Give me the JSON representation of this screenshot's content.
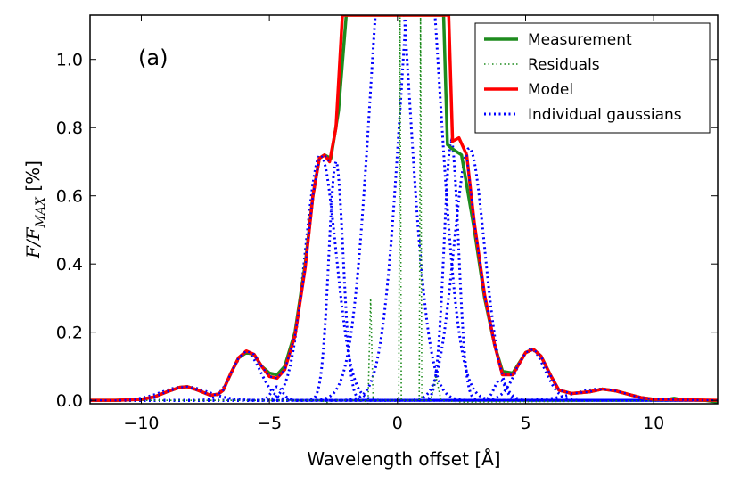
{
  "chart_data": {
    "type": "line",
    "panel_label": "(a)",
    "xlabel": "Wavelength offset [Å]",
    "ylabel": {
      "main": "F/F",
      "subscript": "MAX",
      "unit": " [%]"
    },
    "xlim": [
      -12,
      12.5
    ],
    "ylim": [
      -0.01,
      1.13
    ],
    "xticks": [
      -10,
      -5,
      0,
      5,
      10
    ],
    "xtick_labels": [
      "−10",
      "−5",
      "0",
      "5",
      "10"
    ],
    "yticks": [
      0.0,
      0.2,
      0.4,
      0.6,
      0.8,
      1.0
    ],
    "ytick_labels": [
      "0.0",
      "0.2",
      "0.4",
      "0.6",
      "0.8",
      "1.0"
    ],
    "legend_position": "top-right",
    "series": [
      {
        "name": "Measurement",
        "style": "solid",
        "color": "#1e8b1e",
        "points": [
          [
            -12,
            0.0
          ],
          [
            -11,
            0.0
          ],
          [
            -10,
            0.003
          ],
          [
            -9.5,
            0.01
          ],
          [
            -9,
            0.025
          ],
          [
            -8.5,
            0.038
          ],
          [
            -8.2,
            0.04
          ],
          [
            -7.8,
            0.03
          ],
          [
            -7.3,
            0.015
          ],
          [
            -7,
            0.018
          ],
          [
            -6.8,
            0.03
          ],
          [
            -6.5,
            0.08
          ],
          [
            -6.2,
            0.125
          ],
          [
            -5.9,
            0.14
          ],
          [
            -5.6,
            0.135
          ],
          [
            -5.3,
            0.1
          ],
          [
            -5,
            0.08
          ],
          [
            -4.7,
            0.075
          ],
          [
            -4.4,
            0.1
          ],
          [
            -4,
            0.2
          ],
          [
            -3.6,
            0.4
          ],
          [
            -3.3,
            0.6
          ],
          [
            -3.05,
            0.71
          ],
          [
            -2.85,
            0.72
          ],
          [
            -2.6,
            0.71
          ],
          [
            -2.3,
            0.85
          ],
          [
            -2.0,
            1.13
          ],
          [
            1.8,
            1.13
          ],
          [
            1.95,
            0.75
          ],
          [
            2.1,
            0.74
          ],
          [
            2.5,
            0.72
          ],
          [
            3.0,
            0.5
          ],
          [
            3.4,
            0.3
          ],
          [
            3.8,
            0.16
          ],
          [
            4.1,
            0.085
          ],
          [
            4.5,
            0.08
          ],
          [
            5.0,
            0.14
          ],
          [
            5.3,
            0.15
          ],
          [
            5.6,
            0.13
          ],
          [
            6.0,
            0.07
          ],
          [
            6.3,
            0.03
          ],
          [
            6.8,
            0.02
          ],
          [
            7.5,
            0.025
          ],
          [
            8.0,
            0.033
          ],
          [
            8.5,
            0.028
          ],
          [
            9.0,
            0.018
          ],
          [
            9.5,
            0.008
          ],
          [
            10,
            0.003
          ],
          [
            10.5,
            0.002
          ],
          [
            10.8,
            0.006
          ],
          [
            11.1,
            0.002
          ],
          [
            12,
            0.0
          ],
          [
            12.5,
            -0.005
          ]
        ]
      },
      {
        "name": "Residuals",
        "style": "dotted",
        "color": "#1e8b1e",
        "points": [
          [
            -12,
            0.0
          ],
          [
            -3,
            0.0
          ],
          [
            -2.6,
            -0.01
          ],
          [
            -2.5,
            0.0
          ],
          [
            -1.3,
            0.0
          ],
          [
            -1.15,
            -0.01
          ],
          [
            -1.05,
            0.3
          ],
          [
            -0.95,
            0.0
          ],
          [
            0.05,
            0.0
          ],
          [
            0.1,
            1.13
          ],
          [
            0.15,
            0.0
          ],
          [
            0.85,
            0.0
          ],
          [
            0.9,
            1.13
          ],
          [
            0.95,
            0.0
          ],
          [
            1.3,
            0.0
          ],
          [
            1.5,
            0.07
          ],
          [
            1.7,
            0.0
          ],
          [
            2.5,
            -0.005
          ],
          [
            12.5,
            0.0
          ]
        ]
      },
      {
        "name": "Model",
        "style": "solid",
        "color": "#ff0000",
        "points": [
          [
            -12,
            0.0
          ],
          [
            -11,
            0.0
          ],
          [
            -10,
            0.003
          ],
          [
            -9.5,
            0.01
          ],
          [
            -9,
            0.025
          ],
          [
            -8.5,
            0.038
          ],
          [
            -8.2,
            0.04
          ],
          [
            -7.8,
            0.03
          ],
          [
            -7.3,
            0.015
          ],
          [
            -7,
            0.018
          ],
          [
            -6.8,
            0.03
          ],
          [
            -6.5,
            0.08
          ],
          [
            -6.2,
            0.125
          ],
          [
            -5.9,
            0.145
          ],
          [
            -5.6,
            0.135
          ],
          [
            -5.3,
            0.1
          ],
          [
            -5,
            0.07
          ],
          [
            -4.7,
            0.065
          ],
          [
            -4.4,
            0.09
          ],
          [
            -4,
            0.19
          ],
          [
            -3.6,
            0.39
          ],
          [
            -3.3,
            0.6
          ],
          [
            -3.05,
            0.71
          ],
          [
            -2.85,
            0.72
          ],
          [
            -2.65,
            0.7
          ],
          [
            -2.4,
            0.8
          ],
          [
            -2.15,
            1.13
          ],
          [
            2.0,
            1.13
          ],
          [
            2.15,
            0.76
          ],
          [
            2.4,
            0.77
          ],
          [
            2.7,
            0.72
          ],
          [
            3.0,
            0.52
          ],
          [
            3.4,
            0.31
          ],
          [
            3.8,
            0.16
          ],
          [
            4.1,
            0.075
          ],
          [
            4.5,
            0.075
          ],
          [
            5.0,
            0.14
          ],
          [
            5.3,
            0.15
          ],
          [
            5.6,
            0.13
          ],
          [
            6.0,
            0.07
          ],
          [
            6.3,
            0.03
          ],
          [
            6.8,
            0.02
          ],
          [
            7.5,
            0.025
          ],
          [
            8.0,
            0.033
          ],
          [
            8.5,
            0.028
          ],
          [
            9.0,
            0.018
          ],
          [
            9.5,
            0.008
          ],
          [
            10,
            0.003
          ],
          [
            12.5,
            0.0
          ]
        ]
      },
      {
        "name": "Individual gaussians",
        "style": "dotted",
        "color": "#0000ff",
        "components": [
          {
            "center": -8.3,
            "amp": 0.04,
            "sigma": 0.9
          },
          {
            "center": -5.9,
            "amp": 0.14,
            "sigma": 0.55
          },
          {
            "center": -4.7,
            "amp": 0.04,
            "sigma": 0.22
          },
          {
            "center": -3.0,
            "amp": 0.72,
            "sigma": 0.6
          },
          {
            "center": -2.4,
            "amp": 0.7,
            "sigma": 0.28
          },
          {
            "center": -0.3,
            "amp": 1.5,
            "sigma": 0.75
          },
          {
            "center": 0.9,
            "amp": 1.5,
            "sigma": 0.75
          },
          {
            "center": 2.1,
            "amp": 0.76,
            "sigma": 0.28
          },
          {
            "center": 2.8,
            "amp": 0.74,
            "sigma": 0.6
          },
          {
            "center": 4.0,
            "amp": 0.06,
            "sigma": 0.22
          },
          {
            "center": 5.2,
            "amp": 0.15,
            "sigma": 0.55
          },
          {
            "center": 7.9,
            "amp": 0.033,
            "sigma": 1.0
          }
        ]
      }
    ]
  }
}
